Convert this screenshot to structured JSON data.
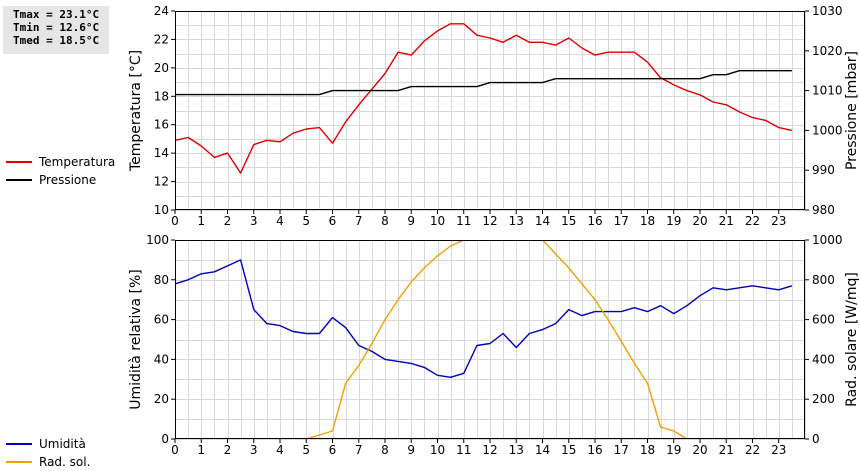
{
  "stats": {
    "tmax": "Tmax = 23.1°C",
    "tmin": "Tmin = 12.6°C",
    "tmed": "Tmed = 18.5°C"
  },
  "colors": {
    "temperature": "#dd0000",
    "pressure": "#000000",
    "humidity": "#0000bb",
    "radiation": "#f0a000",
    "grid": "#d8d8d8"
  },
  "chart_data": [
    {
      "type": "line",
      "x_ticks": [
        "0",
        "1",
        "2",
        "3",
        "4",
        "5",
        "6",
        "7",
        "8",
        "9",
        "10",
        "11",
        "12",
        "13",
        "14",
        "15",
        "16",
        "17",
        "18",
        "19",
        "20",
        "21",
        "22",
        "23"
      ],
      "xlim": [
        0,
        24
      ],
      "ylabel_left": "Temperatura [°C]",
      "ylabel_right": "Pressione [mbar]",
      "ylim_left": [
        10,
        24
      ],
      "ylim_right": [
        980,
        1030
      ],
      "yticks_left": [
        "10",
        "12",
        "14",
        "16",
        "18",
        "20",
        "22",
        "24"
      ],
      "yticks_right": [
        "980",
        "990",
        "1000",
        "1010",
        "1020",
        "1030"
      ],
      "grid": true,
      "legend_position": "left",
      "series": [
        {
          "name": "Temperatura",
          "axis": "left",
          "x": [
            0,
            0.5,
            1,
            1.5,
            2,
            2.5,
            3,
            3.5,
            4,
            4.5,
            5,
            5.5,
            6,
            6.5,
            7,
            7.5,
            8,
            8.5,
            9,
            9.5,
            10,
            10.5,
            11,
            11.5,
            12,
            12.5,
            13,
            13.5,
            14,
            14.5,
            15,
            15.5,
            16,
            16.5,
            17,
            17.5,
            18,
            18.5,
            19,
            19.5,
            20,
            20.5,
            21,
            21.5,
            22,
            22.5,
            23,
            23.5
          ],
          "values": [
            14.9,
            15.1,
            14.5,
            13.7,
            14.0,
            12.6,
            14.6,
            14.9,
            14.8,
            15.4,
            15.7,
            15.8,
            14.7,
            16.2,
            17.4,
            18.5,
            19.6,
            21.1,
            20.9,
            21.9,
            22.6,
            23.1,
            23.1,
            22.3,
            22.1,
            21.8,
            22.3,
            21.8,
            21.8,
            21.6,
            22.1,
            21.4,
            20.9,
            21.1,
            21.1,
            21.1,
            20.4,
            19.3,
            18.8,
            18.4,
            18.1,
            17.6,
            17.4,
            16.9,
            16.5,
            16.3,
            15.8,
            15.6
          ]
        },
        {
          "name": "Pressione",
          "axis": "right",
          "x": [
            0,
            0.5,
            1,
            1.5,
            2,
            2.5,
            3,
            3.5,
            4,
            4.5,
            5,
            5.5,
            6,
            6.5,
            7,
            7.5,
            8,
            8.5,
            9,
            9.5,
            10,
            10.5,
            11,
            11.5,
            12,
            12.5,
            13,
            13.5,
            14,
            14.5,
            15,
            15.5,
            16,
            16.5,
            17,
            17.5,
            18,
            18.5,
            19,
            19.5,
            20,
            20.5,
            21,
            21.5,
            22,
            22.5,
            23,
            23.5
          ],
          "values": [
            1009,
            1009,
            1009,
            1009,
            1009,
            1009,
            1009,
            1009,
            1009,
            1009,
            1009,
            1009,
            1010,
            1010,
            1010,
            1010,
            1010,
            1010,
            1011,
            1011,
            1011,
            1011,
            1011,
            1011,
            1012,
            1012,
            1012,
            1012,
            1012,
            1013,
            1013,
            1013,
            1013,
            1013,
            1013,
            1013,
            1013,
            1013,
            1013,
            1013,
            1013,
            1014,
            1014,
            1015,
            1015,
            1015,
            1015,
            1015
          ]
        }
      ]
    },
    {
      "type": "line",
      "x_ticks": [
        "0",
        "1",
        "2",
        "3",
        "4",
        "5",
        "6",
        "7",
        "8",
        "9",
        "10",
        "11",
        "12",
        "13",
        "14",
        "15",
        "16",
        "17",
        "18",
        "19",
        "20",
        "21",
        "22",
        "23"
      ],
      "xlim": [
        0,
        24
      ],
      "ylabel_left": "Umidità relativa [%]",
      "ylabel_right": "Rad. solare [W/mq]",
      "ylim_left": [
        0,
        100
      ],
      "ylim_right": [
        0,
        1000
      ],
      "yticks_left": [
        "0",
        "20",
        "40",
        "60",
        "80",
        "100"
      ],
      "yticks_right": [
        "0",
        "200",
        "400",
        "600",
        "800",
        "1000"
      ],
      "grid": true,
      "legend_position": "left",
      "series": [
        {
          "name": "Umidità",
          "axis": "left",
          "x": [
            0,
            0.5,
            1,
            1.5,
            2,
            2.5,
            3,
            3.5,
            4,
            4.5,
            5,
            5.5,
            6,
            6.5,
            7,
            7.5,
            8,
            8.5,
            9,
            9.5,
            10,
            10.5,
            11,
            11.5,
            12,
            12.5,
            13,
            13.5,
            14,
            14.5,
            15,
            15.5,
            16,
            16.5,
            17,
            17.5,
            18,
            18.5,
            19,
            19.5,
            20,
            20.5,
            21,
            21.5,
            22,
            22.5,
            23,
            23.5
          ],
          "values": [
            78,
            80,
            83,
            84,
            87,
            90,
            65,
            58,
            57,
            54,
            53,
            53,
            61,
            56,
            47,
            44,
            40,
            39,
            38,
            36,
            32,
            31,
            33,
            47,
            48,
            53,
            46,
            53,
            55,
            58,
            65,
            62,
            64,
            64,
            64,
            66,
            64,
            67,
            63,
            67,
            72,
            76,
            75,
            76,
            77,
            76,
            75,
            77
          ]
        },
        {
          "name": "Rad. sol.",
          "axis": "right",
          "x": [
            0,
            0.5,
            1,
            1.5,
            2,
            2.5,
            3,
            3.5,
            4,
            4.5,
            5,
            5.5,
            6,
            6.5,
            7,
            7.5,
            8,
            8.5,
            9,
            9.5,
            10,
            10.5,
            11,
            11.5,
            12,
            12.5,
            13,
            13.5,
            14,
            14.5,
            15,
            15.5,
            16,
            16.5,
            17,
            17.5,
            18,
            18.5,
            19,
            19.5,
            20,
            20.5,
            21,
            21.5,
            22,
            22.5,
            23,
            23.5
          ],
          "values": [
            0,
            0,
            0,
            0,
            0,
            0,
            0,
            0,
            0,
            0,
            0,
            20,
            40,
            280,
            370,
            480,
            600,
            700,
            790,
            860,
            920,
            970,
            1000,
            1000,
            1000,
            1000,
            1000,
            1000,
            1000,
            930,
            860,
            780,
            700,
            600,
            490,
            380,
            280,
            60,
            40,
            0,
            0,
            0,
            0,
            0,
            0,
            0,
            0,
            0
          ]
        }
      ]
    }
  ]
}
